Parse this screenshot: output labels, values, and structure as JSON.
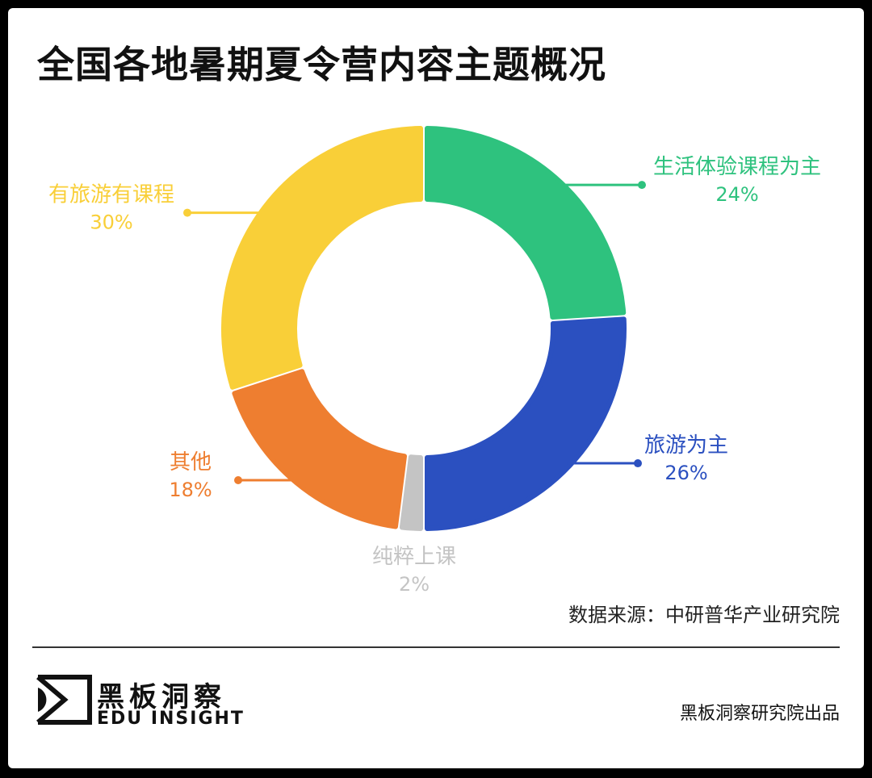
{
  "title": "全国各地暑期夏令营内容主题概况",
  "chart_data": {
    "type": "pie",
    "title": "全国各地暑期夏令营内容主题概况",
    "slices": [
      {
        "label": "生活体验课程为主",
        "value": 24,
        "display": "24%",
        "color": "#2ec27e"
      },
      {
        "label": "旅游为主",
        "value": 26,
        "display": "26%",
        "color": "#2b50c0"
      },
      {
        "label": "纯粹上课",
        "value": 2,
        "display": "2%",
        "color": "#c4c4c4"
      },
      {
        "label": "其他",
        "value": 18,
        "display": "18%",
        "color": "#ee7e30"
      },
      {
        "label": "有旅游有课程",
        "value": 30,
        "display": "30%",
        "color": "#f9cf38"
      }
    ]
  },
  "source": "数据来源：中研普华产业研究院",
  "brand": {
    "name_cn": "黑板洞察",
    "name_en": "EDU INSIGHT"
  },
  "credit": "黑板洞察研究院出品"
}
